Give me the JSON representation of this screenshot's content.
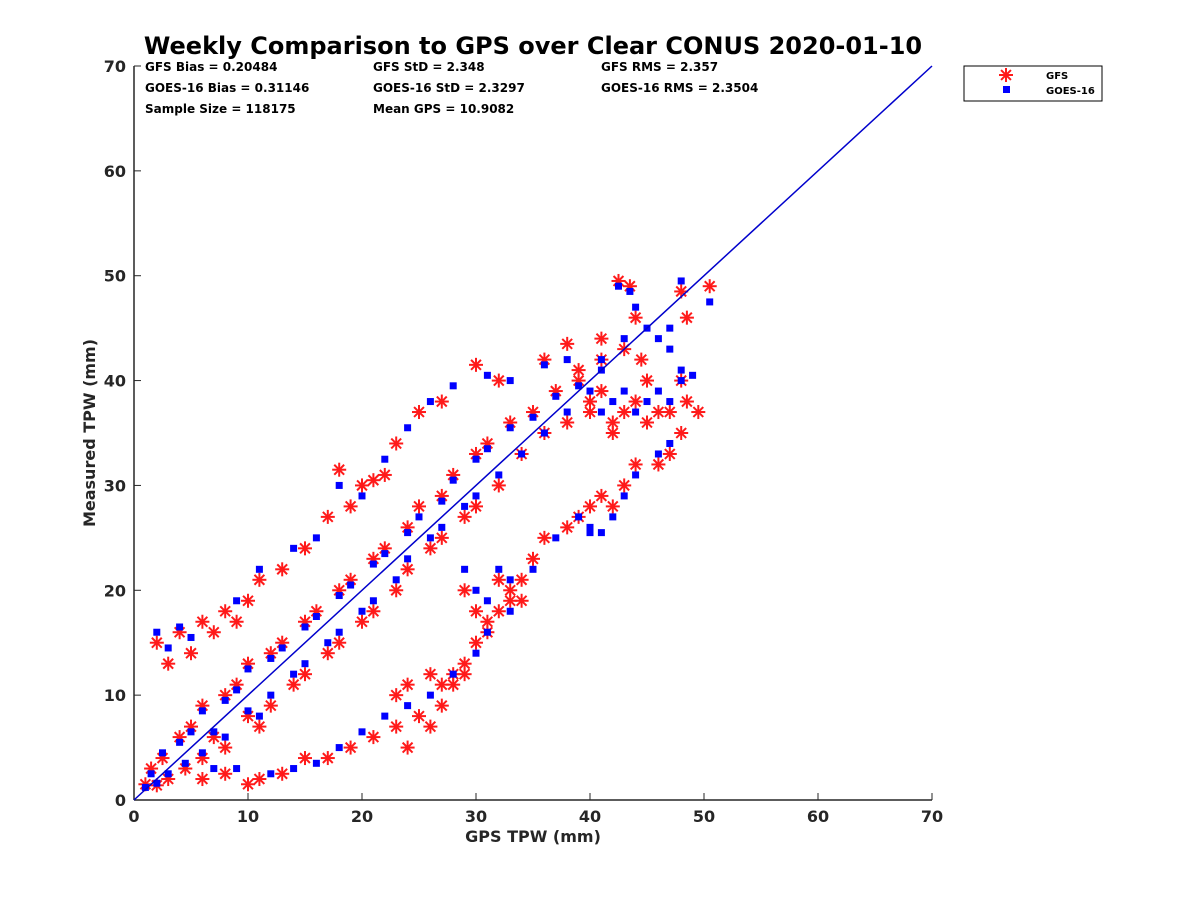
{
  "chart_data": {
    "type": "scatter",
    "title": "Weekly Comparison to GPS over Clear CONUS 2020-01-10",
    "xlabel": "GPS TPW (mm)",
    "ylabel": "Measured TPW (mm)",
    "xlim": [
      0,
      70
    ],
    "ylim": [
      0,
      70
    ],
    "x_ticks": [
      "0",
      "10",
      "20",
      "30",
      "40",
      "50",
      "60",
      "70"
    ],
    "y_ticks": [
      "0",
      "10",
      "20",
      "30",
      "40",
      "50",
      "60",
      "70"
    ],
    "grid": false,
    "legend_position": "top-right, outside plot",
    "stats": {
      "gfs_bias": "GFS Bias = 0.20484",
      "goes_bias": "GOES-16 Bias = 0.31146",
      "sample_size": "Sample Size = 118175",
      "gfs_std": "GFS StD = 2.348",
      "goes_std": "GOES-16 StD = 2.3297",
      "mean_gps": "Mean GPS = 10.9082",
      "gfs_rms": "GFS RMS = 2.357",
      "goes_rms": "GOES-16 RMS = 2.3504"
    },
    "reference_line": {
      "from": [
        0,
        0
      ],
      "to": [
        70,
        70
      ],
      "color": "#0000cc"
    },
    "series": [
      {
        "name": "GFS",
        "marker": "asterisk",
        "color": "#ff1a1a",
        "points": [
          [
            1,
            1.5
          ],
          [
            1.5,
            3
          ],
          [
            2,
            1.4
          ],
          [
            2.5,
            4
          ],
          [
            3,
            2
          ],
          [
            4,
            6
          ],
          [
            4.5,
            3
          ],
          [
            5,
            7
          ],
          [
            6,
            4
          ],
          [
            6,
            9
          ],
          [
            7,
            6
          ],
          [
            8,
            10
          ],
          [
            8,
            5
          ],
          [
            9,
            11
          ],
          [
            10,
            8
          ],
          [
            10,
            13
          ],
          [
            11,
            7
          ],
          [
            12,
            14
          ],
          [
            12,
            9
          ],
          [
            13,
            15
          ],
          [
            14,
            11
          ],
          [
            15,
            17
          ],
          [
            15,
            12
          ],
          [
            16,
            18
          ],
          [
            17,
            14
          ],
          [
            18,
            20
          ],
          [
            18,
            15
          ],
          [
            19,
            21
          ],
          [
            20,
            17
          ],
          [
            21,
            23
          ],
          [
            21,
            18
          ],
          [
            22,
            24
          ],
          [
            23,
            20
          ],
          [
            24,
            26
          ],
          [
            24,
            22
          ],
          [
            25,
            28
          ],
          [
            26,
            24
          ],
          [
            27,
            29
          ],
          [
            27,
            25
          ],
          [
            28,
            31
          ],
          [
            29,
            27
          ],
          [
            30,
            33
          ],
          [
            30,
            28
          ],
          [
            31,
            34
          ],
          [
            32,
            30
          ],
          [
            33,
            36
          ],
          [
            34,
            33
          ],
          [
            35,
            37
          ],
          [
            36,
            35
          ],
          [
            37,
            39
          ],
          [
            38,
            36
          ],
          [
            39,
            40
          ],
          [
            40,
            38
          ],
          [
            41,
            42
          ],
          [
            2,
            15
          ],
          [
            3,
            13
          ],
          [
            4,
            16
          ],
          [
            5,
            14
          ],
          [
            6,
            17
          ],
          [
            7,
            16
          ],
          [
            8,
            18
          ],
          [
            9,
            17
          ],
          [
            10,
            19
          ],
          [
            11,
            21
          ],
          [
            13,
            22
          ],
          [
            15,
            24
          ],
          [
            17,
            27
          ],
          [
            18,
            31.5
          ],
          [
            19,
            28
          ],
          [
            20,
            30
          ],
          [
            21,
            30.5
          ],
          [
            22,
            31
          ],
          [
            23,
            34
          ],
          [
            25,
            37
          ],
          [
            27,
            38
          ],
          [
            30,
            41.5
          ],
          [
            32,
            40
          ],
          [
            6,
            2
          ],
          [
            8,
            2.5
          ],
          [
            10,
            1.5
          ],
          [
            11,
            2
          ],
          [
            13,
            2.5
          ],
          [
            15,
            4
          ],
          [
            17,
            4
          ],
          [
            19,
            5
          ],
          [
            21,
            6
          ],
          [
            23,
            7
          ],
          [
            24,
            5
          ],
          [
            25,
            8
          ],
          [
            26,
            7
          ],
          [
            27,
            9
          ],
          [
            28,
            11
          ],
          [
            29,
            13
          ],
          [
            30,
            15
          ],
          [
            31,
            16
          ],
          [
            32,
            18
          ],
          [
            33,
            19
          ],
          [
            34,
            21
          ],
          [
            35,
            23
          ],
          [
            36,
            25
          ],
          [
            38,
            26
          ],
          [
            39,
            27
          ],
          [
            40,
            28
          ],
          [
            41,
            29
          ],
          [
            42,
            28
          ],
          [
            43,
            30
          ],
          [
            44,
            32
          ],
          [
            23,
            10
          ],
          [
            24,
            11
          ],
          [
            26,
            12
          ],
          [
            27,
            11
          ],
          [
            28,
            12
          ],
          [
            29,
            12
          ],
          [
            29,
            20
          ],
          [
            30,
            18
          ],
          [
            31,
            17
          ],
          [
            32,
            21
          ],
          [
            33,
            20
          ],
          [
            34,
            19
          ],
          [
            40,
            37
          ],
          [
            41,
            39
          ],
          [
            42,
            36
          ],
          [
            42,
            35
          ],
          [
            43,
            37
          ],
          [
            44,
            38
          ],
          [
            45,
            36
          ],
          [
            46,
            37
          ],
          [
            47,
            37
          ],
          [
            48,
            35
          ],
          [
            48.5,
            38
          ],
          [
            49.5,
            37
          ],
          [
            42.5,
            49.5
          ],
          [
            43.5,
            49
          ],
          [
            44,
            46
          ],
          [
            43,
            43
          ],
          [
            44.5,
            42
          ],
          [
            48.5,
            46
          ],
          [
            48,
            48.5
          ],
          [
            50.5,
            49
          ],
          [
            46,
            32
          ],
          [
            47,
            33
          ],
          [
            48,
            40
          ],
          [
            45,
            40
          ],
          [
            41,
            44
          ],
          [
            38,
            43.5
          ],
          [
            36,
            42
          ],
          [
            39,
            41
          ]
        ]
      },
      {
        "name": "GOES-16",
        "marker": "square",
        "color": "#0000ff",
        "points": [
          [
            1,
            1.2
          ],
          [
            1.5,
            2.5
          ],
          [
            2,
            1.6
          ],
          [
            2.5,
            4.5
          ],
          [
            3,
            2.5
          ],
          [
            4,
            5.5
          ],
          [
            4.5,
            3.5
          ],
          [
            5,
            6.5
          ],
          [
            6,
            4.5
          ],
          [
            6,
            8.5
          ],
          [
            7,
            6.5
          ],
          [
            8,
            9.5
          ],
          [
            8,
            6
          ],
          [
            9,
            10.5
          ],
          [
            10,
            8.5
          ],
          [
            10,
            12.5
          ],
          [
            11,
            8
          ],
          [
            12,
            13.5
          ],
          [
            12,
            10
          ],
          [
            13,
            14.5
          ],
          [
            14,
            12
          ],
          [
            15,
            16.5
          ],
          [
            15,
            13
          ],
          [
            16,
            17.5
          ],
          [
            17,
            15
          ],
          [
            18,
            19.5
          ],
          [
            18,
            16
          ],
          [
            19,
            20.5
          ],
          [
            20,
            18
          ],
          [
            21,
            22.5
          ],
          [
            21,
            19
          ],
          [
            22,
            23.5
          ],
          [
            23,
            21
          ],
          [
            24,
            25.5
          ],
          [
            24,
            23
          ],
          [
            25,
            27
          ],
          [
            26,
            25
          ],
          [
            27,
            28.5
          ],
          [
            27,
            26
          ],
          [
            28,
            30.5
          ],
          [
            29,
            28
          ],
          [
            30,
            32.5
          ],
          [
            30,
            29
          ],
          [
            31,
            33.5
          ],
          [
            32,
            31
          ],
          [
            33,
            35.5
          ],
          [
            34,
            33
          ],
          [
            35,
            36.5
          ],
          [
            36,
            35
          ],
          [
            37,
            38.5
          ],
          [
            38,
            37
          ],
          [
            39,
            39.5
          ],
          [
            40,
            39
          ],
          [
            41,
            41
          ],
          [
            2,
            16
          ],
          [
            3,
            14.5
          ],
          [
            4,
            16.5
          ],
          [
            5,
            15.5
          ],
          [
            9,
            19
          ],
          [
            11,
            22
          ],
          [
            14,
            24
          ],
          [
            16,
            25
          ],
          [
            18,
            30
          ],
          [
            20,
            29
          ],
          [
            22,
            32.5
          ],
          [
            24,
            35.5
          ],
          [
            26,
            38
          ],
          [
            28,
            39.5
          ],
          [
            31,
            40.5
          ],
          [
            33,
            40
          ],
          [
            7,
            3
          ],
          [
            9,
            3
          ],
          [
            12,
            2.5
          ],
          [
            14,
            3
          ],
          [
            16,
            3.5
          ],
          [
            18,
            5
          ],
          [
            20,
            6.5
          ],
          [
            22,
            8
          ],
          [
            24,
            9
          ],
          [
            26,
            10
          ],
          [
            28,
            12
          ],
          [
            30,
            14
          ],
          [
            31,
            16
          ],
          [
            33,
            18
          ],
          [
            35,
            22
          ],
          [
            37,
            25
          ],
          [
            39,
            27
          ],
          [
            40,
            26
          ],
          [
            41,
            25.5
          ],
          [
            42,
            27
          ],
          [
            43,
            29
          ],
          [
            44,
            31
          ],
          [
            29,
            22
          ],
          [
            30,
            20
          ],
          [
            31,
            19
          ],
          [
            32,
            22
          ],
          [
            33,
            21
          ],
          [
            41,
            37
          ],
          [
            42,
            38
          ],
          [
            43,
            39
          ],
          [
            44,
            37
          ],
          [
            45,
            38
          ],
          [
            46,
            39
          ],
          [
            47,
            38
          ],
          [
            48,
            40
          ],
          [
            42.5,
            49
          ],
          [
            43.5,
            48.5
          ],
          [
            44,
            47
          ],
          [
            43,
            44
          ],
          [
            45,
            45
          ],
          [
            47,
            45
          ],
          [
            48,
            49.5
          ],
          [
            50.5,
            47.5
          ],
          [
            46,
            33
          ],
          [
            47,
            34
          ],
          [
            46,
            44
          ],
          [
            47,
            43
          ],
          [
            48,
            41
          ],
          [
            49,
            40.5
          ],
          [
            41,
            42
          ],
          [
            38,
            42
          ],
          [
            40,
            25.5
          ],
          [
            36,
            41.5
          ]
        ]
      }
    ]
  }
}
